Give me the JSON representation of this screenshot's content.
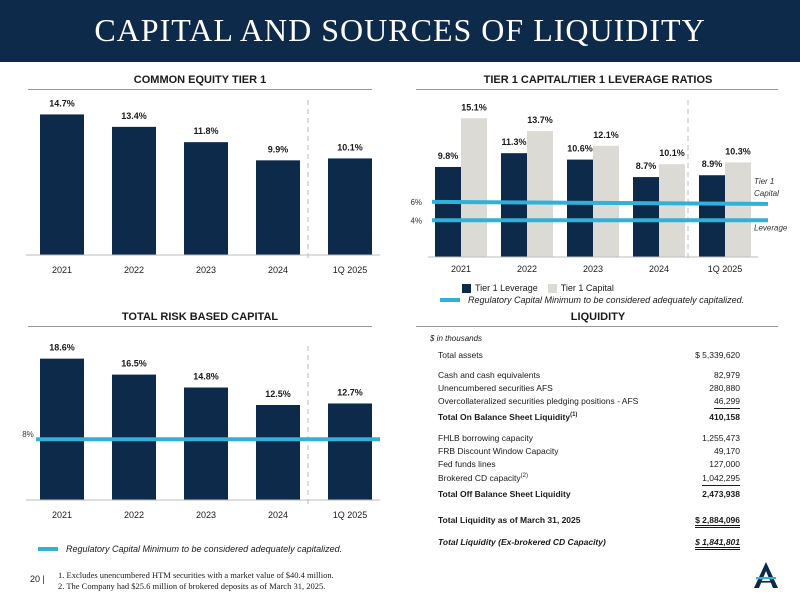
{
  "header": {
    "title": "CAPITAL AND SOURCES OF LIQUIDITY"
  },
  "colors": {
    "navy": "#0d2a4a",
    "gray": "#dcdad4",
    "cyan": "#31b0d8"
  },
  "cet1": {
    "title": "COMMON EQUITY TIER 1",
    "chart_data": {
      "type": "bar",
      "title": "COMMON EQUITY TIER 1",
      "categories": [
        "2021",
        "2022",
        "2023",
        "2024",
        "1Q 2025"
      ],
      "values": [
        14.7,
        13.4,
        11.8,
        9.9,
        10.1
      ],
      "labels": [
        "14.7%",
        "13.4%",
        "11.8%",
        "9.9%",
        "10.1%"
      ],
      "ylim": [
        0,
        16
      ]
    }
  },
  "leverage": {
    "title": "TIER 1 CAPITAL/TIER 1 LEVERAGE RATIOS",
    "chart_data": {
      "type": "bar",
      "categories": [
        "2021",
        "2022",
        "2023",
        "2024",
        "1Q 2025"
      ],
      "series": [
        {
          "name": "Tier 1 Leverage",
          "values": [
            9.8,
            11.3,
            10.6,
            8.7,
            8.9
          ],
          "labels": [
            "9.8%",
            "11.3%",
            "10.6%",
            "8.7%",
            "8.9%"
          ]
        },
        {
          "name": "Tier 1 Capital",
          "values": [
            15.1,
            13.7,
            12.1,
            10.1,
            10.3
          ],
          "labels": [
            "15.1%",
            "13.7%",
            "12.1%",
            "10.1%",
            "10.3%"
          ]
        }
      ],
      "ylim": [
        0,
        16
      ],
      "minimums": [
        {
          "value": 6,
          "label": "6%",
          "name_lines": [
            "Tier 1",
            "Capital"
          ]
        },
        {
          "value": 4,
          "label": "4%",
          "name_lines": [
            "Leverage"
          ]
        }
      ]
    },
    "legend_note": "Regulatory Capital Minimum to be considered adequately capitalized."
  },
  "trbc": {
    "title": "TOTAL RISK BASED CAPITAL",
    "chart_data": {
      "type": "bar",
      "categories": [
        "2021",
        "2022",
        "2023",
        "2024",
        "1Q 2025"
      ],
      "values": [
        18.6,
        16.5,
        14.8,
        12.5,
        12.7
      ],
      "labels": [
        "18.6%",
        "16.5%",
        "14.8%",
        "12.5%",
        "12.7%"
      ],
      "ylim": [
        0,
        20
      ],
      "minimum": {
        "value": 8,
        "label": "8%"
      }
    },
    "legend_note": "Regulatory Capital Minimum to be considered adequately capitalized."
  },
  "liquidity": {
    "title": "LIQUIDITY",
    "units": "$ in thousands",
    "rows": [
      {
        "label": "Total assets",
        "value": "$  5,339,620"
      },
      {
        "label": "Cash and cash equivalents",
        "value": "82,979"
      },
      {
        "label": "Unencumbered securities AFS",
        "value": "280,880"
      },
      {
        "label": "Overcollateralized securities pledging positions - AFS",
        "value": "46,299"
      },
      {
        "label": "Total On Balance Sheet Liquidity",
        "sup": "(1)",
        "value": "410,158"
      },
      {
        "label": "FHLB borrowing capacity",
        "value": "1,255,473"
      },
      {
        "label": "FRB Discount Window Capacity",
        "value": "49,170"
      },
      {
        "label": "Fed funds lines",
        "value": "127,000"
      },
      {
        "label": "Brokered CD capacity",
        "sup": "(2)",
        "value": "1,042,295"
      },
      {
        "label": "Total Off Balance Sheet Liquidity",
        "value": "2,473,938"
      },
      {
        "label": "Total Liquidity as of March 31, 2025",
        "value": "$  2,884,096"
      },
      {
        "label": "Total Liquidity (Ex-brokered CD Capacity)",
        "value": "$  1,841,801"
      }
    ]
  },
  "footer": {
    "page": "20 |",
    "notes": [
      "1. Excludes unencumbered HTM securities with a market value of $40.4 million.",
      "2. The Company had $25.6 million of brokered deposits as of March 31, 2025."
    ]
  }
}
